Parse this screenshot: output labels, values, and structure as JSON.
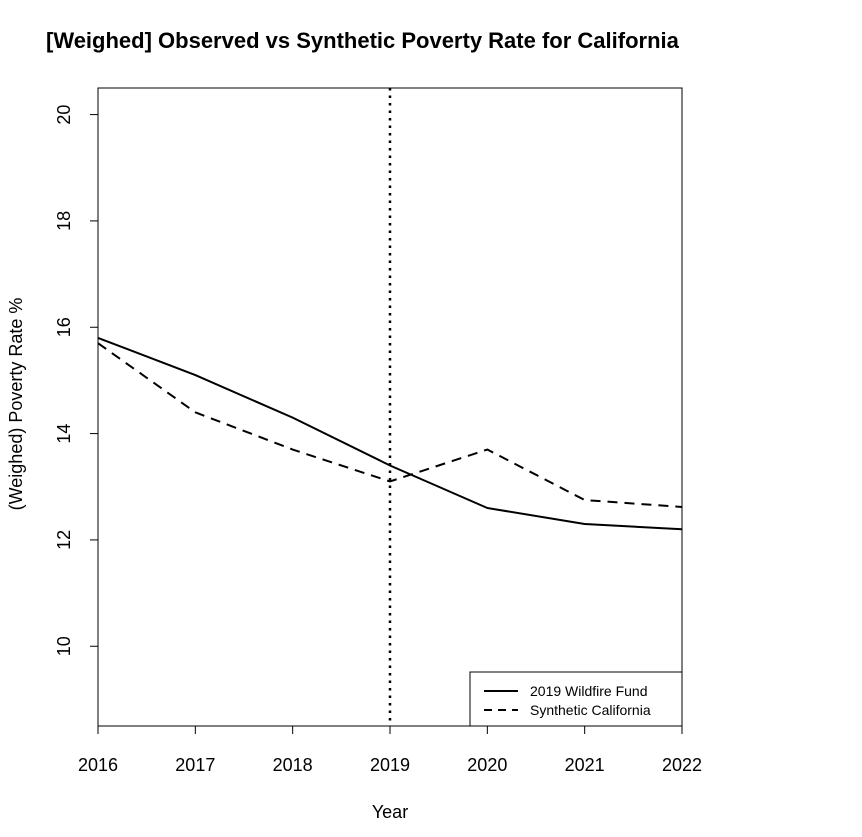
{
  "chart_data": {
    "type": "line",
    "title": "[Weighed] Observed vs Synthetic Poverty Rate for California",
    "xlabel": "Year",
    "ylabel": "(Weighed) Poverty Rate %",
    "x": [
      2016,
      2017,
      2018,
      2019,
      2020,
      2021,
      2022
    ],
    "xlim": [
      2016,
      2022
    ],
    "ylim": [
      8.5,
      20.5
    ],
    "yticks": [
      10,
      12,
      14,
      16,
      18,
      20
    ],
    "series": [
      {
        "name": "2019 Wildfire Fund",
        "style": "solid",
        "color": "#000000",
        "values": [
          15.8,
          15.1,
          14.3,
          13.4,
          12.6,
          12.3,
          12.2
        ]
      },
      {
        "name": "Synthetic California",
        "style": "dashed",
        "color": "#000000",
        "values": [
          15.7,
          14.4,
          13.7,
          13.1,
          13.7,
          12.75,
          12.62
        ]
      }
    ],
    "reference_line": {
      "x": 2019,
      "style": "dotted"
    },
    "legend_position": "bottom-right",
    "grid": false
  }
}
